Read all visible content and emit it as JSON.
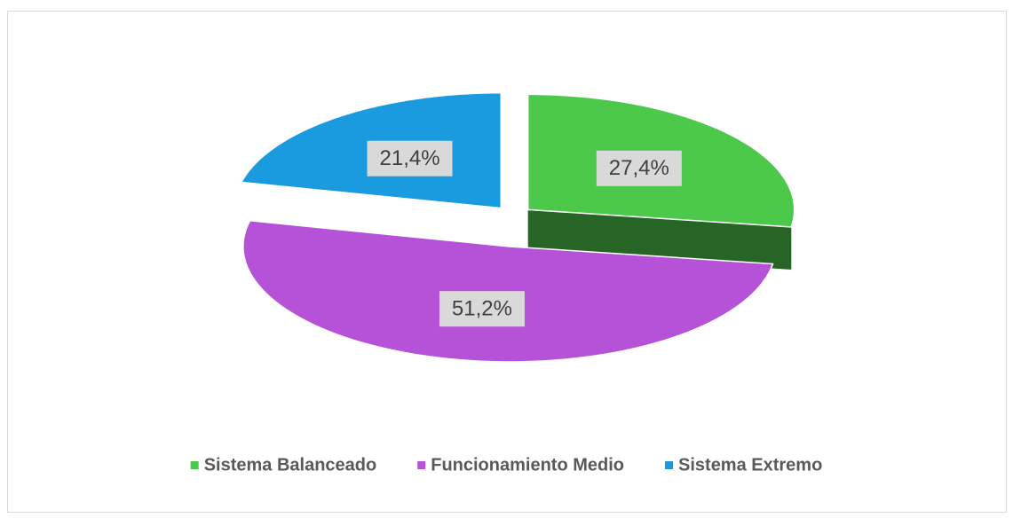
{
  "chart_data": {
    "type": "pie",
    "categories": [
      "Sistema Balanceado",
      "Funcionamiento Medio",
      "Sistema Extremo"
    ],
    "values": [
      27.4,
      51.2,
      21.4
    ],
    "value_labels": [
      "27,4%",
      "51,2%",
      "21,4%"
    ],
    "colors": [
      "#4cc94a",
      "#b552d8",
      "#1a9be0"
    ],
    "legend": "bottom"
  }
}
